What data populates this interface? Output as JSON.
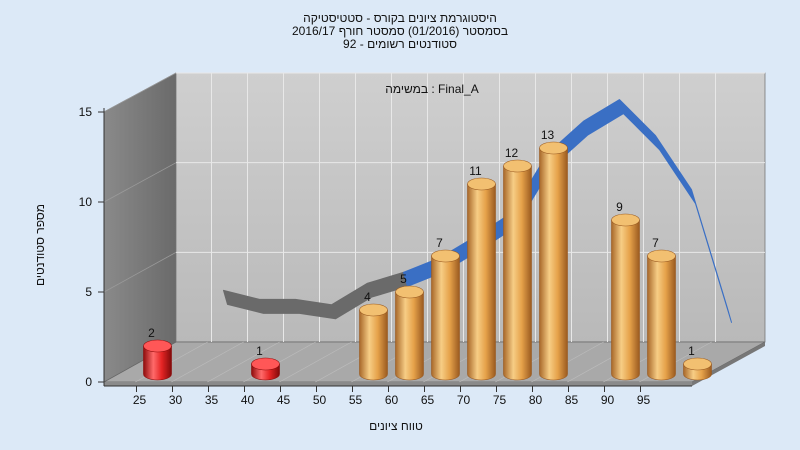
{
  "chart_data": {
    "type": "bar",
    "title_lines": [
      "היסטוגרמת ציונים בקורס - סטטיסטיקה",
      "בסמסטר  (01/2016)  סמסטר חורף 2016/17",
      "סטודנטים רשומים - 92"
    ],
    "subtitle": "במשימה : Final_A",
    "xlabel": "טווח ציונים",
    "ylabel": "מספר סטודנטים",
    "ylim": [
      0,
      15
    ],
    "yticks": [
      "0",
      "5",
      "10",
      "15"
    ],
    "xticks": [
      "25",
      "30",
      "35",
      "40",
      "45",
      "50",
      "55",
      "60",
      "65",
      "70",
      "75",
      "80",
      "85",
      "90",
      "95"
    ],
    "bars": [
      {
        "x": 25,
        "value": 2,
        "color": "red"
      },
      {
        "x": 40,
        "value": 1,
        "color": "red"
      },
      {
        "x": 55,
        "value": 4,
        "color": "orange"
      },
      {
        "x": 60,
        "value": 5,
        "color": "orange"
      },
      {
        "x": 65,
        "value": 7,
        "color": "orange"
      },
      {
        "x": 70,
        "value": 11,
        "color": "orange"
      },
      {
        "x": 75,
        "value": 12,
        "color": "orange"
      },
      {
        "x": 80,
        "value": 13,
        "color": "orange"
      },
      {
        "x": 90,
        "value": 9,
        "color": "orange"
      },
      {
        "x": 95,
        "value": 7,
        "color": "orange"
      },
      {
        "x": 100,
        "value": 1,
        "color": "orange"
      }
    ],
    "curve": {
      "x": [
        30,
        35,
        40,
        45,
        50,
        55,
        60,
        65,
        70,
        75,
        80,
        85,
        90,
        95,
        100
      ],
      "y": [
        3.2,
        2.7,
        2.7,
        2.4,
        3.6,
        4.2,
        5.0,
        6.2,
        7.5,
        10.8,
        12.6,
        13.8,
        11.8,
        8.8,
        2.2
      ]
    },
    "grid": true,
    "colors": {
      "red": "#e52424",
      "orange": "#e6a24a",
      "curve_front": "#3a6fc4",
      "curve_back": "#6a6a6a"
    }
  }
}
